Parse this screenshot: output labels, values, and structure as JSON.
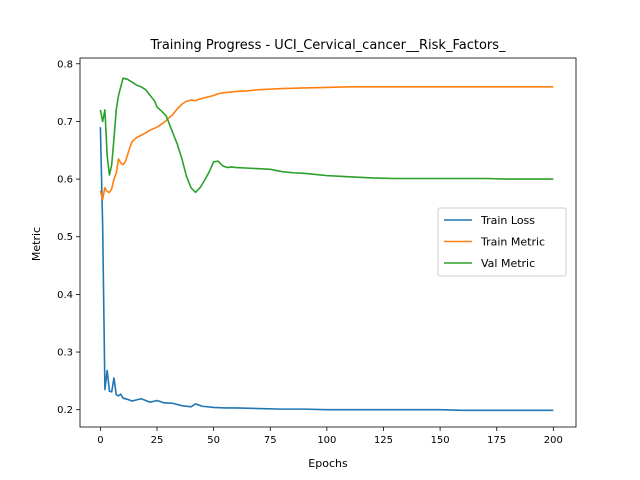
{
  "chart_data": {
    "type": "line",
    "title": "Training Progress - UCI_Cervical_cancer__Risk_Factors_",
    "xlabel": "Epochs",
    "ylabel": "Metric",
    "xlim": [
      -9,
      210
    ],
    "ylim": [
      0.17,
      0.81
    ],
    "xticks": [
      0,
      25,
      50,
      75,
      100,
      125,
      150,
      175,
      200
    ],
    "yticks": [
      0.2,
      0.3,
      0.4,
      0.5,
      0.6,
      0.7,
      0.8
    ],
    "grid": false,
    "legend_position": "center-right",
    "series": [
      {
        "name": "Train Loss",
        "color": "#1f77b4",
        "points": [
          [
            0,
            0.69
          ],
          [
            1,
            0.52
          ],
          [
            2,
            0.235
          ],
          [
            3,
            0.268
          ],
          [
            4,
            0.232
          ],
          [
            5,
            0.231
          ],
          [
            6,
            0.255
          ],
          [
            7,
            0.226
          ],
          [
            8,
            0.224
          ],
          [
            9,
            0.227
          ],
          [
            10,
            0.22
          ],
          [
            12,
            0.218
          ],
          [
            14,
            0.215
          ],
          [
            16,
            0.217
          ],
          [
            18,
            0.219
          ],
          [
            20,
            0.216
          ],
          [
            22,
            0.213
          ],
          [
            25,
            0.216
          ],
          [
            28,
            0.212
          ],
          [
            32,
            0.211
          ],
          [
            36,
            0.207
          ],
          [
            40,
            0.205
          ],
          [
            42,
            0.21
          ],
          [
            45,
            0.206
          ],
          [
            50,
            0.204
          ],
          [
            55,
            0.203
          ],
          [
            60,
            0.203
          ],
          [
            70,
            0.202
          ],
          [
            80,
            0.201
          ],
          [
            90,
            0.201
          ],
          [
            100,
            0.2
          ],
          [
            110,
            0.2
          ],
          [
            120,
            0.2
          ],
          [
            130,
            0.2
          ],
          [
            140,
            0.2
          ],
          [
            150,
            0.2
          ],
          [
            160,
            0.199
          ],
          [
            170,
            0.199
          ],
          [
            180,
            0.199
          ],
          [
            190,
            0.199
          ],
          [
            200,
            0.199
          ]
        ]
      },
      {
        "name": "Train Metric",
        "color": "#ff7f0e",
        "points": [
          [
            0,
            0.58
          ],
          [
            1,
            0.565
          ],
          [
            2,
            0.585
          ],
          [
            3,
            0.578
          ],
          [
            4,
            0.577
          ],
          [
            5,
            0.583
          ],
          [
            6,
            0.6
          ],
          [
            7,
            0.61
          ],
          [
            8,
            0.635
          ],
          [
            9,
            0.628
          ],
          [
            10,
            0.625
          ],
          [
            11,
            0.63
          ],
          [
            12,
            0.642
          ],
          [
            13,
            0.655
          ],
          [
            14,
            0.665
          ],
          [
            16,
            0.672
          ],
          [
            18,
            0.676
          ],
          [
            20,
            0.68
          ],
          [
            22,
            0.685
          ],
          [
            25,
            0.69
          ],
          [
            28,
            0.698
          ],
          [
            30,
            0.705
          ],
          [
            32,
            0.712
          ],
          [
            34,
            0.722
          ],
          [
            36,
            0.73
          ],
          [
            38,
            0.735
          ],
          [
            40,
            0.737
          ],
          [
            42,
            0.736
          ],
          [
            44,
            0.739
          ],
          [
            46,
            0.741
          ],
          [
            48,
            0.743
          ],
          [
            50,
            0.745
          ],
          [
            52,
            0.748
          ],
          [
            55,
            0.75
          ],
          [
            60,
            0.752
          ],
          [
            65,
            0.753
          ],
          [
            70,
            0.755
          ],
          [
            75,
            0.756
          ],
          [
            80,
            0.757
          ],
          [
            90,
            0.758
          ],
          [
            100,
            0.759
          ],
          [
            110,
            0.76
          ],
          [
            120,
            0.76
          ],
          [
            140,
            0.76
          ],
          [
            160,
            0.76
          ],
          [
            180,
            0.76
          ],
          [
            200,
            0.76
          ]
        ]
      },
      {
        "name": "Val Metric",
        "color": "#2ca02c",
        "points": [
          [
            0,
            0.72
          ],
          [
            1,
            0.7
          ],
          [
            2,
            0.72
          ],
          [
            3,
            0.64
          ],
          [
            4,
            0.607
          ],
          [
            5,
            0.625
          ],
          [
            6,
            0.67
          ],
          [
            7,
            0.72
          ],
          [
            8,
            0.745
          ],
          [
            9,
            0.76
          ],
          [
            10,
            0.775
          ],
          [
            12,
            0.773
          ],
          [
            14,
            0.768
          ],
          [
            16,
            0.763
          ],
          [
            18,
            0.76
          ],
          [
            20,
            0.755
          ],
          [
            22,
            0.745
          ],
          [
            24,
            0.735
          ],
          [
            25,
            0.725
          ],
          [
            27,
            0.718
          ],
          [
            29,
            0.71
          ],
          [
            30,
            0.7
          ],
          [
            32,
            0.68
          ],
          [
            34,
            0.66
          ],
          [
            36,
            0.635
          ],
          [
            38,
            0.605
          ],
          [
            40,
            0.585
          ],
          [
            42,
            0.577
          ],
          [
            44,
            0.585
          ],
          [
            46,
            0.598
          ],
          [
            48,
            0.612
          ],
          [
            50,
            0.63
          ],
          [
            52,
            0.631
          ],
          [
            54,
            0.623
          ],
          [
            56,
            0.62
          ],
          [
            58,
            0.621
          ],
          [
            60,
            0.62
          ],
          [
            65,
            0.619
          ],
          [
            70,
            0.618
          ],
          [
            75,
            0.617
          ],
          [
            80,
            0.613
          ],
          [
            85,
            0.611
          ],
          [
            90,
            0.61
          ],
          [
            95,
            0.608
          ],
          [
            100,
            0.606
          ],
          [
            105,
            0.605
          ],
          [
            110,
            0.604
          ],
          [
            120,
            0.602
          ],
          [
            130,
            0.601
          ],
          [
            140,
            0.601
          ],
          [
            150,
            0.601
          ],
          [
            160,
            0.601
          ],
          [
            170,
            0.601
          ],
          [
            180,
            0.6
          ],
          [
            190,
            0.6
          ],
          [
            200,
            0.6
          ]
        ]
      }
    ]
  }
}
